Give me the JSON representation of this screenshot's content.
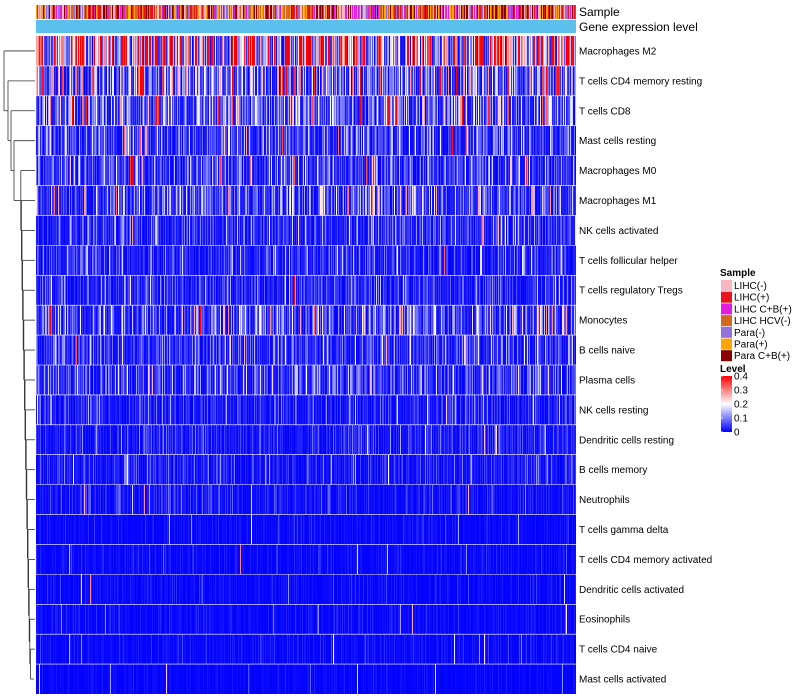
{
  "chart_data": {
    "type": "heatmap",
    "title": "",
    "annotation_rows": [
      {
        "name": "Sample",
        "label": "Sample"
      },
      {
        "name": "Gene expression level",
        "label": "Gene expression level"
      }
    ],
    "rows": [
      {
        "label": "Macrophages M2",
        "mean": 0.26
      },
      {
        "label": "T cells CD4 memory resting",
        "mean": 0.12
      },
      {
        "label": "T cells CD8",
        "mean": 0.1
      },
      {
        "label": "Mast cells resting",
        "mean": 0.06
      },
      {
        "label": "Macrophages M0",
        "mean": 0.06
      },
      {
        "label": "Macrophages M1",
        "mean": 0.07
      },
      {
        "label": "NK cells activated",
        "mean": 0.05
      },
      {
        "label": "T cells follicular helper",
        "mean": 0.04
      },
      {
        "label": "T cells regulatory  Tregs",
        "mean": 0.04
      },
      {
        "label": "Monocytes",
        "mean": 0.08
      },
      {
        "label": "B cells naive",
        "mean": 0.05
      },
      {
        "label": "Plasma cells",
        "mean": 0.05
      },
      {
        "label": "NK cells resting",
        "mean": 0.03
      },
      {
        "label": "Dendritic cells resting",
        "mean": 0.03
      },
      {
        "label": "B cells memory",
        "mean": 0.03
      },
      {
        "label": "Neutrophils",
        "mean": 0.02
      },
      {
        "label": "T cells gamma delta",
        "mean": 0.01
      },
      {
        "label": "T cells CD4 memory activated",
        "mean": 0.01
      },
      {
        "label": "Dendritic cells activated",
        "mean": 0.01
      },
      {
        "label": "Eosinophils",
        "mean": 0.01
      },
      {
        "label": "T cells CD4 naive",
        "mean": 0.01
      },
      {
        "label": "Mast cells activated",
        "mean": 0.005
      }
    ],
    "sample_legend": {
      "title": "Sample",
      "entries": [
        {
          "label": "LIHC(-)",
          "color": "#F7B6C2"
        },
        {
          "label": "LIHC(+)",
          "color": "#E8141C"
        },
        {
          "label": "LIHC C+B(+)",
          "color": "#E01CE0"
        },
        {
          "label": "LIHC HCV(-)",
          "color": "#D2691E"
        },
        {
          "label": "Para(-)",
          "color": "#9370DB"
        },
        {
          "label": "Para(+)",
          "color": "#FFA500"
        },
        {
          "label": "Para C+B(+)",
          "color": "#8B0000"
        }
      ]
    },
    "level_legend": {
      "title": "Level",
      "ticks": [
        "0.4",
        "0.3",
        "0.2",
        "0.1",
        "0"
      ],
      "tick_values": [
        0.4,
        0.3,
        0.2,
        0.1,
        0
      ],
      "range": [
        0,
        0.4
      ],
      "colors": [
        "#0000FF",
        "#FFFFFF",
        "#FF0000"
      ]
    },
    "expression_level_color": "#5BC0EB",
    "n_samples": 540
  }
}
